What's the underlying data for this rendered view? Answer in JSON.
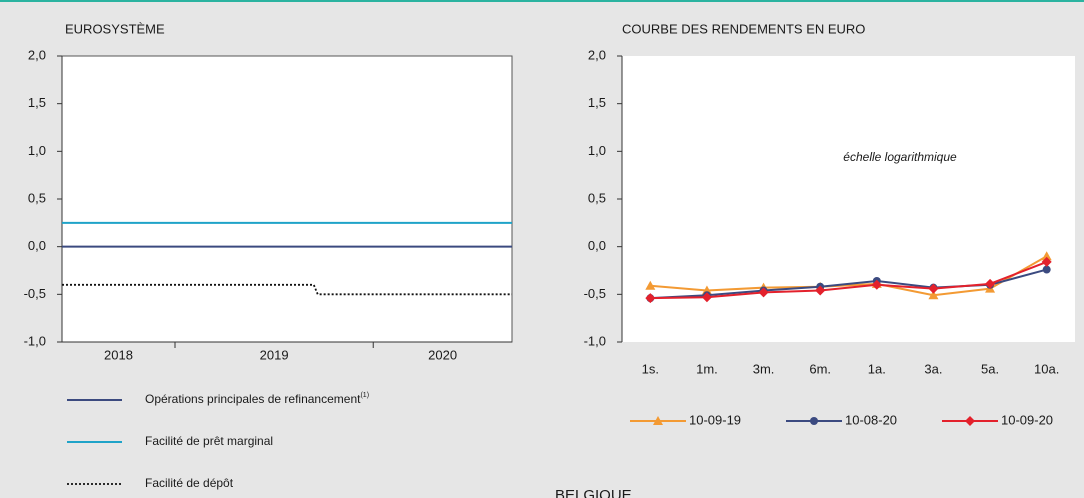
{
  "chart_data": [
    {
      "type": "line",
      "title": "EUROSYSTÈME",
      "xlim": [
        2018.43,
        2020.7
      ],
      "xticks": [
        2019,
        2020
      ],
      "year_labels": [
        2018,
        2019,
        2020
      ],
      "ylim": [
        -1,
        2
      ],
      "yticks": [
        {
          "value": -1,
          "label": "-1,0"
        },
        {
          "value": -0.5,
          "label": "-0,5"
        },
        {
          "value": 0,
          "label": "0,0"
        },
        {
          "value": 0.5,
          "label": "0,5"
        },
        {
          "value": 1,
          "label": "1,0"
        },
        {
          "value": 1.5,
          "label": "1,5"
        },
        {
          "value": 2,
          "label": "2,0"
        }
      ],
      "series": [
        {
          "name": "Opérations principales de refinancement",
          "name_note": "(1)",
          "color": "#3b4a7f",
          "line_style": "solid",
          "x": [
            2018.43,
            2020.7
          ],
          "values": [
            0,
            0
          ]
        },
        {
          "name": "Facilité de prêt marginal",
          "color": "#1fa3c8",
          "line_style": "solid",
          "x": [
            2018.43,
            2020.7
          ],
          "values": [
            0.25,
            0.25
          ]
        },
        {
          "name": "Facilité de dépôt",
          "color": "#111111",
          "line_style": "dotted",
          "x": [
            2018.43,
            2019.7,
            2019.72,
            2020.7
          ],
          "values": [
            -0.4,
            -0.4,
            -0.5,
            -0.5
          ]
        }
      ]
    },
    {
      "type": "line",
      "title": "COURBE DES RENDEMENTS EN EURO",
      "annotation": "échelle logarithmique",
      "categories": [
        "1s.",
        "1m.",
        "3m.",
        "6m.",
        "1a.",
        "3a.",
        "5a.",
        "10a."
      ],
      "ylim": [
        -1,
        2
      ],
      "yticks": [
        {
          "value": -1,
          "label": "-1,0"
        },
        {
          "value": -0.5,
          "label": "-0,5"
        },
        {
          "value": 0,
          "label": "0,0"
        },
        {
          "value": 0.5,
          "label": "0,5"
        },
        {
          "value": 1,
          "label": "1,0"
        },
        {
          "value": 1.5,
          "label": "1,5"
        },
        {
          "value": 2,
          "label": "2,0"
        }
      ],
      "series": [
        {
          "name": "10-09-19",
          "color": "#f39a33",
          "marker": "triangle",
          "values": [
            -0.41,
            -0.46,
            -0.43,
            -0.42,
            -0.39,
            -0.51,
            -0.44,
            -0.1
          ]
        },
        {
          "name": "10-08-20",
          "color": "#3b4a80",
          "marker": "circle",
          "values": [
            -0.54,
            -0.51,
            -0.46,
            -0.42,
            -0.36,
            -0.43,
            -0.4,
            -0.24
          ]
        },
        {
          "name": "10-09-20",
          "color": "#e3212c",
          "marker": "diamond",
          "values": [
            -0.54,
            -0.53,
            -0.48,
            -0.46,
            -0.4,
            -0.44,
            -0.39,
            -0.16
          ]
        }
      ]
    }
  ],
  "next_section_title": "BELGIQUE"
}
